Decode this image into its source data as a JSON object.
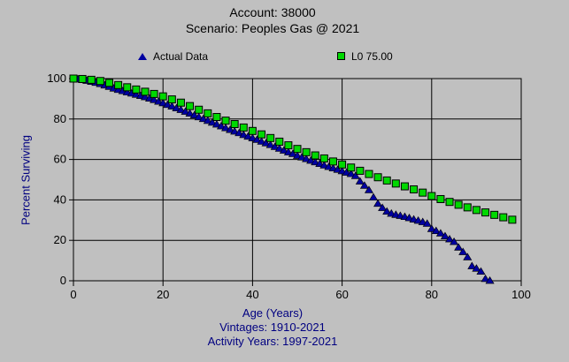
{
  "window": {
    "background_color": "#c0c0c0",
    "grid_color": "#000000",
    "label_color": "#000080"
  },
  "chart_data": {
    "type": "scatter",
    "title_lines": [
      "Account: 38000",
      "Scenario: Peoples Gas @ 2021"
    ],
    "xlabel": "Age (Years)",
    "ylabel": "Percent Surviving",
    "annotations": [
      "Vintages: 1910-2021",
      "Activity Years: 1997-2021"
    ],
    "xlim": [
      0,
      100
    ],
    "ylim": [
      0,
      100
    ],
    "x_ticks": [
      0,
      20,
      40,
      60,
      80,
      100
    ],
    "y_ticks": [
      0,
      20,
      40,
      60,
      80,
      100
    ],
    "grid": true,
    "legend_position": "top",
    "series": [
      {
        "name": "Actual Data",
        "marker": "triangle",
        "color": "#0000a0",
        "points": [
          [
            0,
            100
          ],
          [
            1,
            99.8
          ],
          [
            2,
            99.5
          ],
          [
            3,
            99.1
          ],
          [
            4,
            98.6
          ],
          [
            5,
            98.1
          ],
          [
            6,
            97.5
          ],
          [
            7,
            96.8
          ],
          [
            8,
            96.1
          ],
          [
            9,
            95.3
          ],
          [
            10,
            94.6
          ],
          [
            11,
            94.0
          ],
          [
            12,
            93.4
          ],
          [
            13,
            92.8
          ],
          [
            14,
            92.2
          ],
          [
            15,
            91.6
          ],
          [
            16,
            91.0
          ],
          [
            17,
            90.3
          ],
          [
            18,
            89.6
          ],
          [
            19,
            88.8
          ],
          [
            20,
            88.0
          ],
          [
            21,
            87.2
          ],
          [
            22,
            86.4
          ],
          [
            23,
            85.5
          ],
          [
            24,
            84.7
          ],
          [
            25,
            83.8
          ],
          [
            26,
            82.9
          ],
          [
            27,
            82.0
          ],
          [
            28,
            81.1
          ],
          [
            29,
            80.2
          ],
          [
            30,
            79.3
          ],
          [
            31,
            78.4
          ],
          [
            32,
            77.5
          ],
          [
            33,
            76.6
          ],
          [
            34,
            75.7
          ],
          [
            35,
            74.8
          ],
          [
            36,
            74.0
          ],
          [
            37,
            73.2
          ],
          [
            38,
            72.3
          ],
          [
            39,
            71.5
          ],
          [
            40,
            70.7
          ],
          [
            41,
            69.9
          ],
          [
            42,
            69.0
          ],
          [
            43,
            68.2
          ],
          [
            44,
            67.3
          ],
          [
            45,
            66.4
          ],
          [
            46,
            65.5
          ],
          [
            47,
            64.6
          ],
          [
            48,
            63.7
          ],
          [
            49,
            62.9
          ],
          [
            50,
            62.0
          ],
          [
            51,
            61.2
          ],
          [
            52,
            60.4
          ],
          [
            53,
            59.6
          ],
          [
            54,
            58.8
          ],
          [
            55,
            58.0
          ],
          [
            56,
            57.2
          ],
          [
            57,
            56.5
          ],
          [
            58,
            55.8
          ],
          [
            59,
            55.1
          ],
          [
            60,
            54.4
          ],
          [
            61,
            53.7
          ],
          [
            62,
            53.0
          ],
          [
            63,
            52.0
          ],
          [
            64,
            49.3
          ],
          [
            65,
            47.2
          ],
          [
            66,
            45.0
          ],
          [
            67,
            41.4
          ],
          [
            68,
            38.3
          ],
          [
            69,
            36.2
          ],
          [
            70,
            34.4
          ],
          [
            71,
            33.4
          ],
          [
            72,
            32.8
          ],
          [
            73,
            32.3
          ],
          [
            74,
            31.8
          ],
          [
            75,
            31.2
          ],
          [
            76,
            30.5
          ],
          [
            77,
            29.9
          ],
          [
            78,
            29.2
          ],
          [
            79,
            28.4
          ],
          [
            80,
            25.8
          ],
          [
            81,
            24.8
          ],
          [
            82,
            23.6
          ],
          [
            83,
            22.2
          ],
          [
            84,
            20.7
          ],
          [
            85,
            19.4
          ],
          [
            86,
            16.6
          ],
          [
            87,
            14.4
          ],
          [
            88,
            11.8
          ],
          [
            89,
            7.4
          ],
          [
            90,
            6.2
          ],
          [
            91,
            4.7
          ],
          [
            92,
            1.1
          ],
          [
            93,
            0.2
          ]
        ]
      },
      {
        "name": "L0 75.00",
        "marker": "square",
        "color": "#00d800",
        "points": [
          [
            0,
            100
          ],
          [
            2,
            99.8
          ],
          [
            4,
            99.4
          ],
          [
            6,
            98.8
          ],
          [
            8,
            97.9
          ],
          [
            10,
            96.8
          ],
          [
            12,
            95.7
          ],
          [
            14,
            94.6
          ],
          [
            16,
            93.5
          ],
          [
            18,
            92.4
          ],
          [
            20,
            91.2
          ],
          [
            22,
            89.7
          ],
          [
            24,
            88.1
          ],
          [
            26,
            86.4
          ],
          [
            28,
            84.6
          ],
          [
            30,
            82.8
          ],
          [
            32,
            81.0
          ],
          [
            34,
            79.2
          ],
          [
            36,
            77.5
          ],
          [
            38,
            75.8
          ],
          [
            40,
            74.1
          ],
          [
            42,
            72.4
          ],
          [
            44,
            70.6
          ],
          [
            46,
            68.8
          ],
          [
            48,
            67.0
          ],
          [
            50,
            65.2
          ],
          [
            52,
            63.6
          ],
          [
            54,
            62.0
          ],
          [
            56,
            60.5
          ],
          [
            58,
            59.0
          ],
          [
            60,
            57.5
          ],
          [
            62,
            56.0
          ],
          [
            64,
            54.4
          ],
          [
            66,
            52.8
          ],
          [
            68,
            51.2
          ],
          [
            70,
            49.6
          ],
          [
            72,
            48.1
          ],
          [
            74,
            46.7
          ],
          [
            76,
            45.2
          ],
          [
            78,
            43.6
          ],
          [
            80,
            41.9
          ],
          [
            82,
            40.4
          ],
          [
            84,
            39.0
          ],
          [
            86,
            37.6
          ],
          [
            88,
            36.3
          ],
          [
            90,
            35.0
          ],
          [
            92,
            33.8
          ],
          [
            94,
            32.6
          ],
          [
            96,
            31.4
          ],
          [
            98,
            30.2
          ]
        ]
      }
    ]
  }
}
